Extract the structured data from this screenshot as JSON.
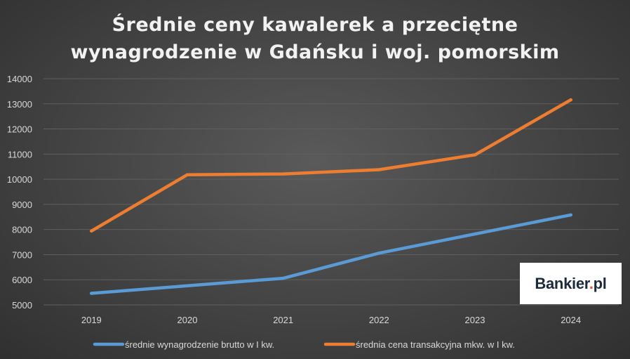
{
  "chart_data": {
    "type": "line",
    "title": "Średnie ceny kawalerek a przeciętne wynagrodzenie w Gdańsku i woj. pomorskim",
    "title_lines": [
      "Średnie ceny kawalerek a przeciętne",
      "wynagrodzenie w Gdańsku i woj. pomorskim"
    ],
    "xlabel": "",
    "ylabel": "",
    "x": [
      "2019",
      "2020",
      "2021",
      "2022",
      "2023",
      "2024"
    ],
    "ylim": [
      5000,
      14000
    ],
    "yticks": [
      "5000",
      "6000",
      "7000",
      "8000",
      "9000",
      "10000",
      "11000",
      "12000",
      "13000",
      "14000"
    ],
    "grid": true,
    "legend_position": "bottom",
    "series": [
      {
        "name": "średnie wynagrodzenie brutto w I kw.",
        "color": "#5b9bd5",
        "values": [
          5460,
          5760,
          6060,
          7060,
          7820,
          8580
        ]
      },
      {
        "name": "średnia cena transakcyjna mkw. w I kw.",
        "color": "#ed7d31",
        "values": [
          7940,
          10180,
          10210,
          10380,
          10970,
          13160
        ]
      }
    ]
  },
  "logo": {
    "brand": "Bankier",
    "dot": ".",
    "suffix": "pl"
  },
  "colors": {
    "background": "#404040",
    "gridline": "#5f5f5f",
    "text": "#d9d9d9"
  }
}
